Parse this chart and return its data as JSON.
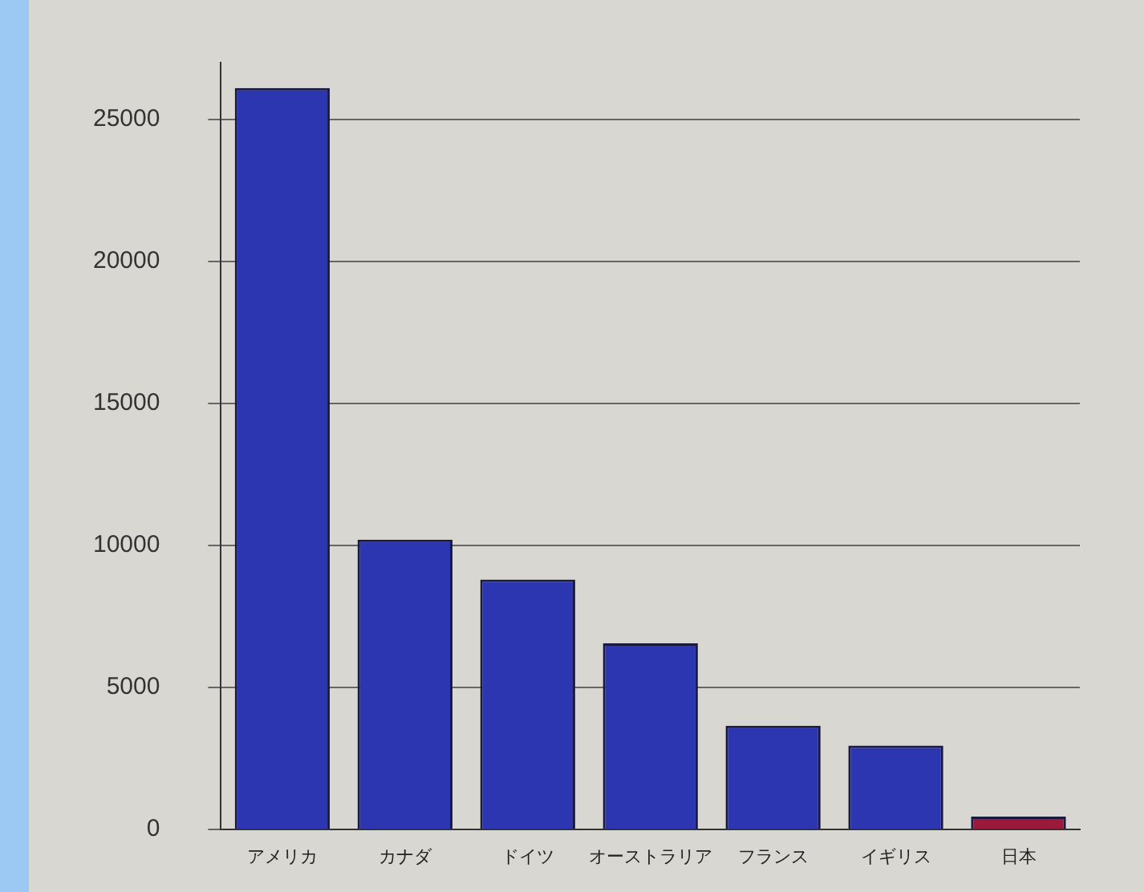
{
  "chart_data": {
    "type": "bar",
    "categories": [
      "アメリカ",
      "カナダ",
      "ドイツ",
      "オーストラリア",
      "フランス",
      "イギリス",
      "日本"
    ],
    "values": [
      26100,
      10200,
      8800,
      6550,
      3650,
      2950,
      450
    ],
    "colors": [
      "#2b36b0",
      "#2b36b0",
      "#2b36b0",
      "#2b36b0",
      "#2b36b0",
      "#2b36b0",
      "#9a1a3c"
    ],
    "ylim": [
      0,
      27000
    ],
    "yticks": [
      0,
      5000,
      10000,
      15000,
      20000,
      25000
    ],
    "grid": "y",
    "legend": false
  }
}
